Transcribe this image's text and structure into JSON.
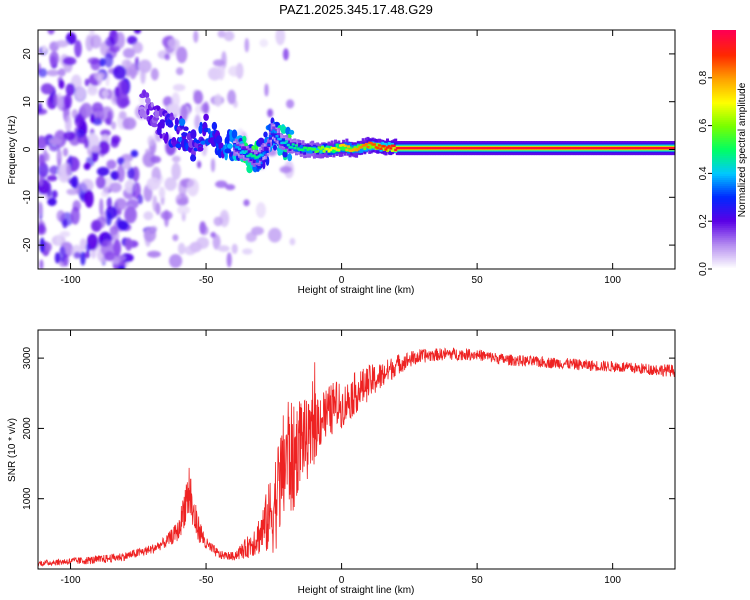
{
  "title": "PAZ1.2025.345.17.48.G29",
  "chart_data": [
    {
      "type": "heatmap",
      "id": "spectrogram",
      "xlabel": "Height of straight line (km)",
      "ylabel": "Frequency (Hz)",
      "xlim": [
        -112,
        123
      ],
      "ylim": [
        -25,
        25
      ],
      "xticks": [
        -100,
        -50,
        0,
        50,
        100
      ],
      "xtick_labels": [
        "-100",
        "-50",
        "0",
        "50",
        "100"
      ],
      "yticks": [
        -20,
        -10,
        0,
        10,
        20
      ],
      "ytick_labels": [
        "-20",
        "-10",
        "0",
        "10",
        "20"
      ],
      "ridge_x": [
        -72,
        -68,
        -62,
        -58,
        -55,
        -50,
        -45,
        -40,
        -35,
        -32,
        -28,
        -26,
        -23,
        -20,
        -15,
        -10,
        -5,
        0,
        5,
        10,
        15,
        20,
        123
      ],
      "ridge_y": [
        10,
        6,
        4,
        3,
        0,
        4,
        2,
        0.5,
        -1,
        -2,
        0,
        4,
        2,
        1,
        0,
        0,
        0,
        0.5,
        0,
        1,
        0.5,
        0.3,
        0.3
      ],
      "ridge_amplitude": [
        0.15,
        0.2,
        0.25,
        0.3,
        0.25,
        0.3,
        0.3,
        0.35,
        0.45,
        0.5,
        0.3,
        0.35,
        0.4,
        0.45,
        0.5,
        0.55,
        0.7,
        0.75,
        0.8,
        0.85,
        0.9,
        0.95,
        0.95
      ]
    },
    {
      "type": "colorbar",
      "id": "colorbar",
      "label": "Normalized spectral amplitude",
      "range": [
        0,
        1
      ],
      "ticks": [
        0.0,
        0.2,
        0.4,
        0.6,
        0.8
      ],
      "tick_labels": [
        "0.0",
        "0.2",
        "0.4",
        "0.6",
        "0.8"
      ],
      "colors": [
        "#ffffff",
        "#b48cf0",
        "#5a00e6",
        "#0028ff",
        "#00c8ff",
        "#00ff64",
        "#78ff00",
        "#ffff00",
        "#ffa000",
        "#ff2800",
        "#ff0050"
      ]
    },
    {
      "type": "line",
      "id": "snr",
      "xlabel": "Height of straight line (km)",
      "ylabel": "SNR (10 * v/v)",
      "xlim": [
        -112,
        123
      ],
      "ylim": [
        0,
        3400
      ],
      "xticks": [
        -100,
        -50,
        0,
        50,
        100
      ],
      "xtick_labels": [
        "-100",
        "-50",
        "0",
        "50",
        "100"
      ],
      "yticks": [
        1000,
        2000,
        3000
      ],
      "ytick_labels": [
        "1000",
        "2000",
        "3000"
      ],
      "color": "#ee2222",
      "x": [
        -112,
        -100,
        -90,
        -80,
        -70,
        -65,
        -60,
        -58,
        -56,
        -55,
        -53,
        -50,
        -45,
        -40,
        -35,
        -30,
        -27,
        -25,
        -22,
        -20,
        -18,
        -15,
        -12,
        -10,
        -8,
        -5,
        -2,
        0,
        5,
        10,
        15,
        20,
        25,
        30,
        35,
        40,
        50,
        60,
        70,
        80,
        90,
        100,
        110,
        123
      ],
      "y": [
        80,
        110,
        130,
        180,
        280,
        380,
        550,
        900,
        1150,
        800,
        600,
        350,
        200,
        180,
        300,
        500,
        700,
        900,
        1300,
        1700,
        1500,
        1900,
        1800,
        2000,
        2150,
        2200,
        2350,
        2300,
        2500,
        2650,
        2750,
        2900,
        2980,
        3030,
        3050,
        3060,
        3050,
        2980,
        2950,
        2930,
        2900,
        2880,
        2850,
        2820
      ],
      "noise": [
        40,
        50,
        60,
        60,
        70,
        80,
        150,
        300,
        500,
        300,
        200,
        100,
        60,
        60,
        150,
        300,
        500,
        700,
        800,
        900,
        800,
        600,
        550,
        500,
        450,
        400,
        350,
        300,
        300,
        250,
        200,
        150,
        120,
        100,
        90,
        90,
        80,
        80,
        80,
        80,
        80,
        80,
        80,
        90
      ]
    }
  ]
}
